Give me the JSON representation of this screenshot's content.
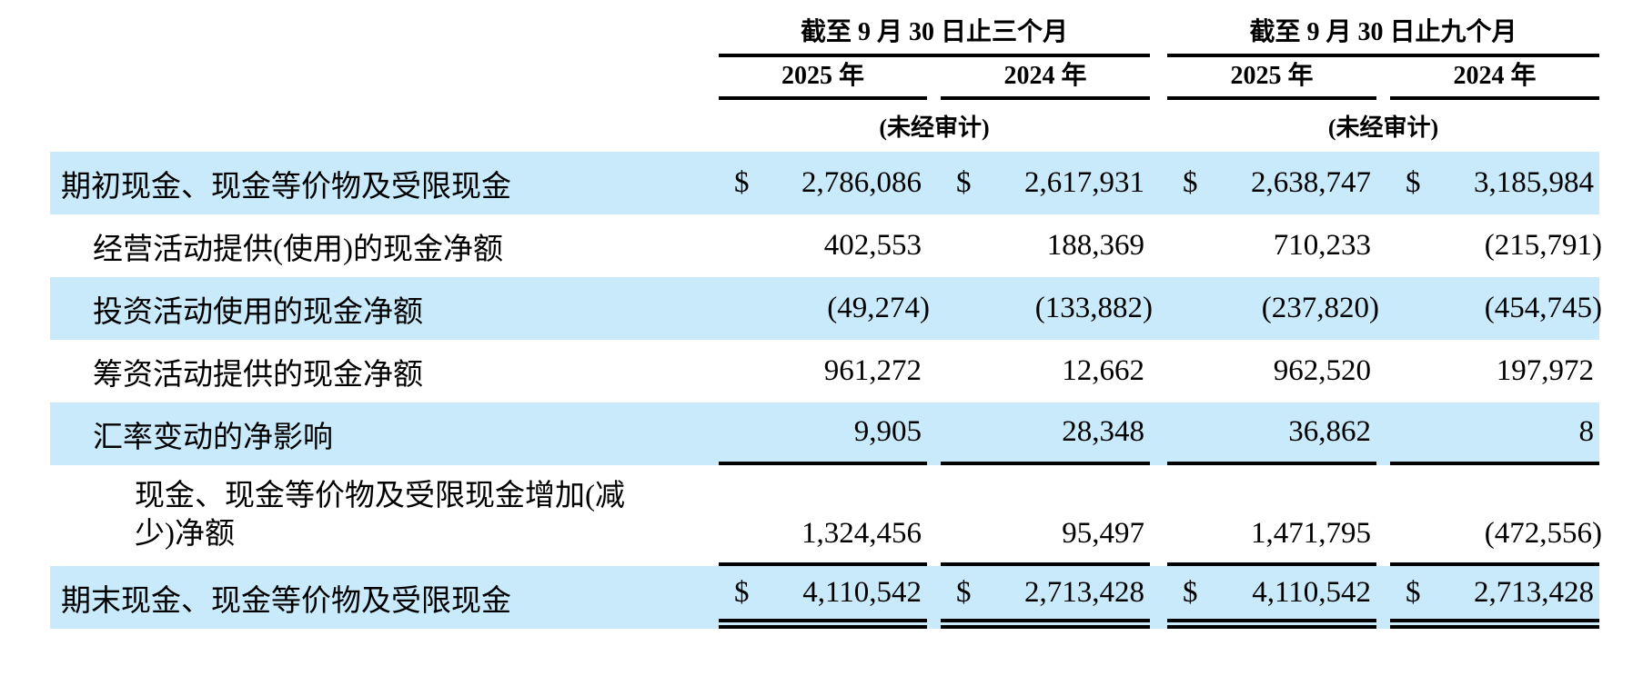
{
  "table": {
    "unaudited_note": "(未经审计)",
    "currency_symbol": "$",
    "colors": {
      "highlight": "#C9EAFB",
      "text": "#000000"
    },
    "col_groups": [
      {
        "label": "截至 9 月 30 日止三个月",
        "years": [
          "2025 年",
          "2024 年"
        ]
      },
      {
        "label": "截至 9 月 30 日止九个月",
        "years": [
          "2025 年",
          "2024 年"
        ]
      }
    ],
    "rows": [
      {
        "label": "期初现金、现金等价物及受限现金",
        "values": [
          "2,786,086",
          "2,617,931",
          "2,638,747",
          "3,185,984"
        ]
      },
      {
        "label": "经营活动提供(使用)的现金净额",
        "values": [
          "402,553",
          "188,369",
          "710,233",
          "(215,791)"
        ]
      },
      {
        "label": "投资活动使用的现金净额",
        "values": [
          "(49,274)",
          "(133,882)",
          "(237,820)",
          "(454,745)"
        ]
      },
      {
        "label": "筹资活动提供的现金净额",
        "values": [
          "961,272",
          "12,662",
          "962,520",
          "197,972"
        ]
      },
      {
        "label": "汇率变动的净影响",
        "values": [
          "9,905",
          "28,348",
          "36,862",
          "8"
        ]
      },
      {
        "label": "现金、现金等价物及受限现金增加(减少)净额",
        "values": [
          "1,324,456",
          "95,497",
          "1,471,795",
          "(472,556)"
        ]
      },
      {
        "label": "期末现金、现金等价物及受限现金",
        "values": [
          "4,110,542",
          "2,713,428",
          "4,110,542",
          "2,713,428"
        ]
      }
    ]
  }
}
